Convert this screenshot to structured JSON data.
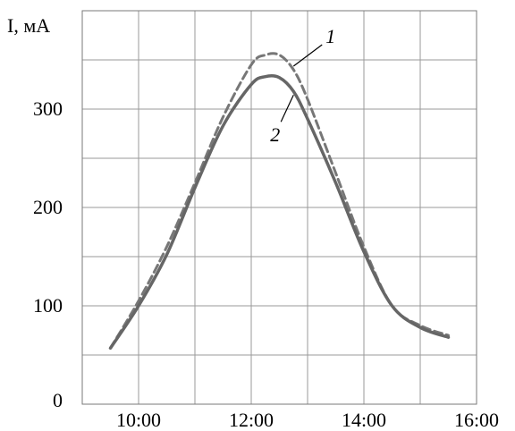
{
  "chart_data": {
    "type": "line",
    "xlabel": "",
    "ylabel": "I, мА",
    "x_ticks": [
      "10:00",
      "12:00",
      "14:00",
      "16:00"
    ],
    "y_ticks": [
      "0",
      "100",
      "200",
      "300"
    ],
    "xlim": [
      "09:00",
      "16:00"
    ],
    "ylim": [
      0,
      400
    ],
    "grid": true,
    "colors": {
      "series_1": "#777777",
      "series_2": "#666666"
    },
    "series": [
      {
        "name": "1",
        "line_style": "dashed",
        "x": [
          "09:30",
          "10:00",
          "10:30",
          "11:00",
          "11:30",
          "12:00",
          "12:15",
          "12:30",
          "12:45",
          "13:00",
          "13:30",
          "14:00",
          "14:30",
          "15:00",
          "15:30"
        ],
        "values": [
          57,
          105,
          160,
          225,
          292,
          345,
          355,
          355,
          340,
          310,
          235,
          160,
          100,
          80,
          70
        ]
      },
      {
        "name": "2",
        "line_style": "solid",
        "x": [
          "09:30",
          "10:00",
          "10:30",
          "11:00",
          "11:30",
          "12:00",
          "12:15",
          "12:30",
          "12:45",
          "13:00",
          "13:30",
          "14:00",
          "14:30",
          "15:00",
          "15:30"
        ],
        "values": [
          57,
          100,
          152,
          220,
          283,
          325,
          333,
          332,
          318,
          290,
          225,
          155,
          100,
          78,
          68
        ]
      }
    ]
  }
}
